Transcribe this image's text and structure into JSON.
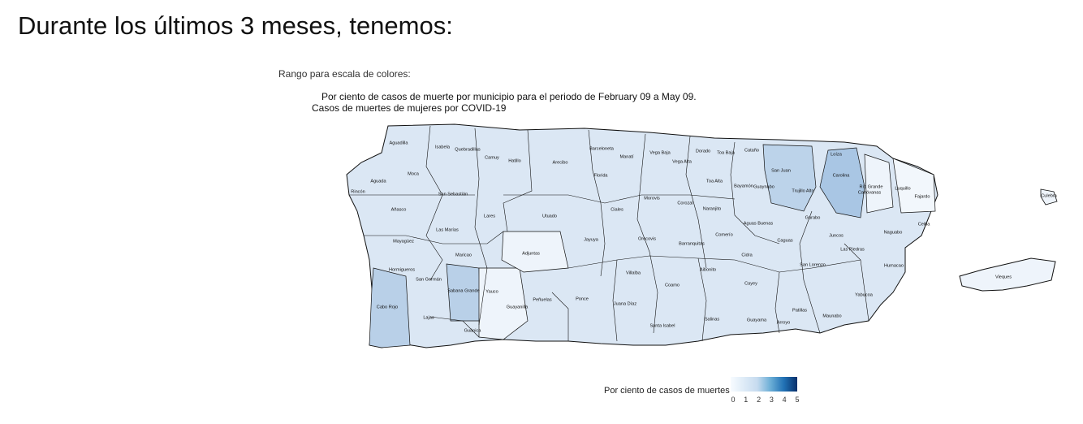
{
  "heading": "Durante los últimos 3 meses, tenemos:",
  "range_label": "Rango para escala de colores:",
  "map": {
    "title": "Por ciento de casos de muerte por municipio para el periodo de February 09 a May 09.",
    "subtitle": "Casos de muertes de mujeres por COVID-19",
    "legend_title": "Por ciento de casos de muertes",
    "legend_ticks": [
      "0",
      "1",
      "2",
      "3",
      "4",
      "5"
    ],
    "colors": {
      "low": "#f7fbff",
      "mid": "#c6dbef",
      "high": "#08306b",
      "border": "#111111"
    }
  },
  "municipalities": [
    {
      "name": "Aguadilla"
    },
    {
      "name": "Isabela"
    },
    {
      "name": "Quebradillas"
    },
    {
      "name": "Camuy"
    },
    {
      "name": "Hatillo"
    },
    {
      "name": "Arecibo"
    },
    {
      "name": "Barceloneta"
    },
    {
      "name": "Manatí"
    },
    {
      "name": "Vega Baja"
    },
    {
      "name": "Dorado"
    },
    {
      "name": "Toa Baja"
    },
    {
      "name": "Cataño"
    },
    {
      "name": "Loíza"
    },
    {
      "name": "Aguada"
    },
    {
      "name": "Moca"
    },
    {
      "name": "Rincón"
    },
    {
      "name": "San Sebastián"
    },
    {
      "name": "Lares"
    },
    {
      "name": "Utuado"
    },
    {
      "name": "Florida"
    },
    {
      "name": "Ciales"
    },
    {
      "name": "Morovis"
    },
    {
      "name": "Vega Alta"
    },
    {
      "name": "Toa Alta"
    },
    {
      "name": "Corozal"
    },
    {
      "name": "Bayamón"
    },
    {
      "name": "Guaynabo"
    },
    {
      "name": "San Juan"
    },
    {
      "name": "Trujillo Alto"
    },
    {
      "name": "Carolina"
    },
    {
      "name": "Canóvanas"
    },
    {
      "name": "Río Grande"
    },
    {
      "name": "Luquillo"
    },
    {
      "name": "Fajardo"
    },
    {
      "name": "Culebra"
    },
    {
      "name": "Añasco"
    },
    {
      "name": "Las Marías"
    },
    {
      "name": "Mayagüez"
    },
    {
      "name": "Maricao"
    },
    {
      "name": "Adjuntas"
    },
    {
      "name": "Jayuya"
    },
    {
      "name": "Orocovis"
    },
    {
      "name": "Barranquitas"
    },
    {
      "name": "Naranjito"
    },
    {
      "name": "Comerío"
    },
    {
      "name": "Aguas Buenas"
    },
    {
      "name": "Caguas"
    },
    {
      "name": "Gurabo"
    },
    {
      "name": "Juncos"
    },
    {
      "name": "Ceiba"
    },
    {
      "name": "Naguabo"
    },
    {
      "name": "Las Piedras"
    },
    {
      "name": "Cidra"
    },
    {
      "name": "Aibonito"
    },
    {
      "name": "San Lorenzo"
    },
    {
      "name": "Humacao"
    },
    {
      "name": "Hormigueros"
    },
    {
      "name": "San Germán"
    },
    {
      "name": "Sabana Grande"
    },
    {
      "name": "Yauco"
    },
    {
      "name": "Villalba"
    },
    {
      "name": "Coamo"
    },
    {
      "name": "Cayey"
    },
    {
      "name": "Yabucoa"
    },
    {
      "name": "Cabo Rojo"
    },
    {
      "name": "Lajas"
    },
    {
      "name": "Guánica"
    },
    {
      "name": "Guayanilla"
    },
    {
      "name": "Peñuelas"
    },
    {
      "name": "Ponce"
    },
    {
      "name": "Juana Díaz"
    },
    {
      "name": "Santa Isabel"
    },
    {
      "name": "Salinas"
    },
    {
      "name": "Guayama"
    },
    {
      "name": "Arroyo"
    },
    {
      "name": "Patillas"
    },
    {
      "name": "Maunabo"
    },
    {
      "name": "Vieques"
    }
  ]
}
